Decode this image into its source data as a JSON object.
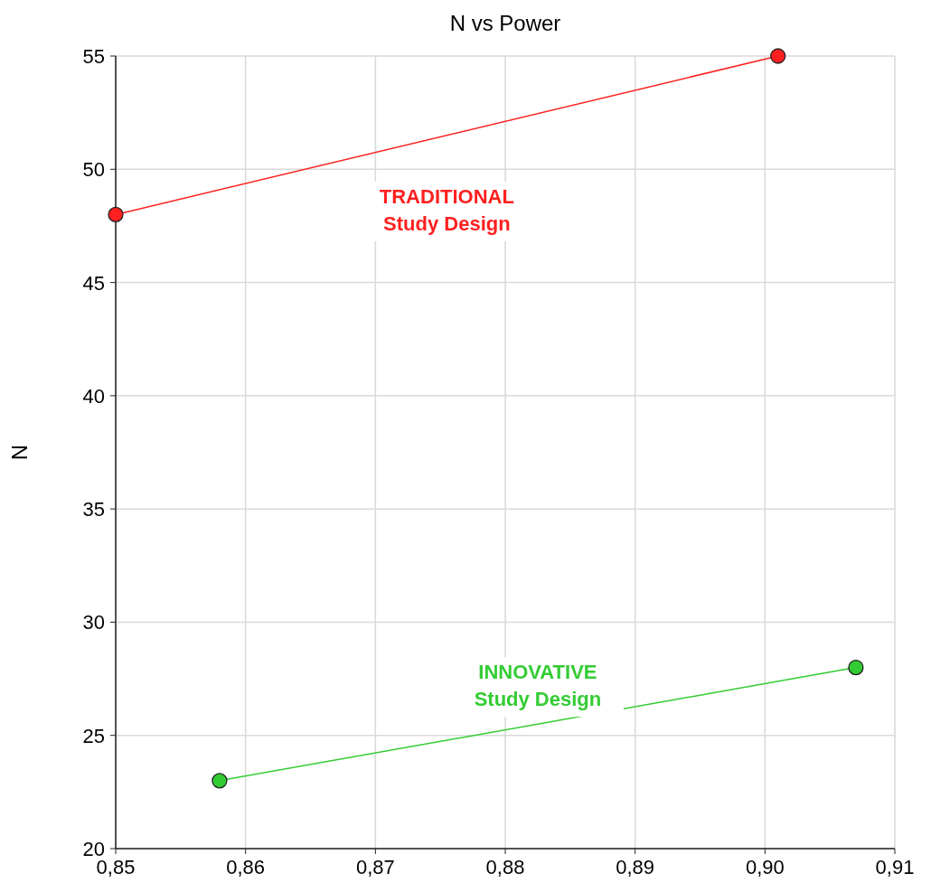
{
  "chart_data": {
    "type": "line",
    "title": "N vs Power",
    "ylabel": "N",
    "xlim": [
      0.85,
      0.91
    ],
    "xticks": [
      {
        "value": 0.85,
        "label": "0,85"
      },
      {
        "value": 0.86,
        "label": "0,86"
      },
      {
        "value": 0.87,
        "label": "0,87"
      },
      {
        "value": 0.88,
        "label": "0,88"
      },
      {
        "value": 0.89,
        "label": "0,89"
      },
      {
        "value": 0.9,
        "label": "0,90"
      },
      {
        "value": 0.91,
        "label": "0,91"
      }
    ],
    "ylim": [
      20,
      55
    ],
    "yticks": [
      20,
      25,
      30,
      35,
      40,
      45,
      50,
      55
    ],
    "grid": true,
    "marker": "circle",
    "line_style": "solid",
    "series": [
      {
        "name": "TRADITIONAL Study Design",
        "color": "#ff2020",
        "x": [
          0.85,
          0.901
        ],
        "values": [
          48,
          55
        ]
      },
      {
        "name": "INNOVATIVE Study Design",
        "color": "#33cc33",
        "x": [
          0.858,
          0.907
        ],
        "values": [
          23,
          28
        ]
      }
    ]
  }
}
